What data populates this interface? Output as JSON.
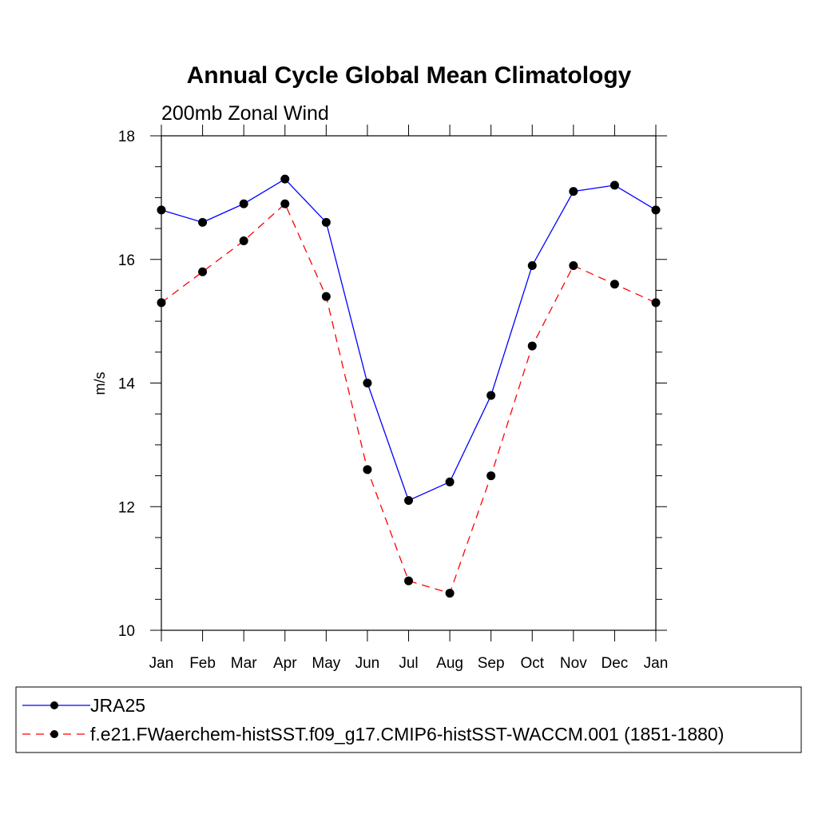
{
  "chart_data": {
    "type": "line",
    "title": "Annual Cycle Global Mean Climatology",
    "subtitle": "200mb Zonal Wind",
    "ylabel": "m/s",
    "xlabel": "",
    "categories": [
      "Jan",
      "Feb",
      "Mar",
      "Apr",
      "May",
      "Jun",
      "Jul",
      "Aug",
      "Sep",
      "Oct",
      "Nov",
      "Dec",
      "Jan"
    ],
    "ylim": [
      10,
      18
    ],
    "yticks": [
      "10",
      "12",
      "14",
      "16",
      "18"
    ],
    "grid": false,
    "legend_position": "bottom",
    "series": [
      {
        "name": "JRA25",
        "color": "#0000ff",
        "dash": "solid",
        "marker": "filled-circle",
        "values": [
          16.8,
          16.6,
          16.9,
          17.3,
          16.6,
          14.0,
          12.1,
          12.4,
          13.8,
          15.9,
          17.1,
          17.2,
          16.8
        ]
      },
      {
        "name": "f.e21.FWaerchem-histSST.f09_g17.CMIP6-histSST-WACCM.001 (1851-1880)",
        "color": "#ff0000",
        "dash": "dashed",
        "marker": "filled-circle",
        "values": [
          15.3,
          15.8,
          16.3,
          16.9,
          15.4,
          12.6,
          10.8,
          10.6,
          12.5,
          14.6,
          15.9,
          15.6,
          15.3
        ]
      }
    ]
  }
}
